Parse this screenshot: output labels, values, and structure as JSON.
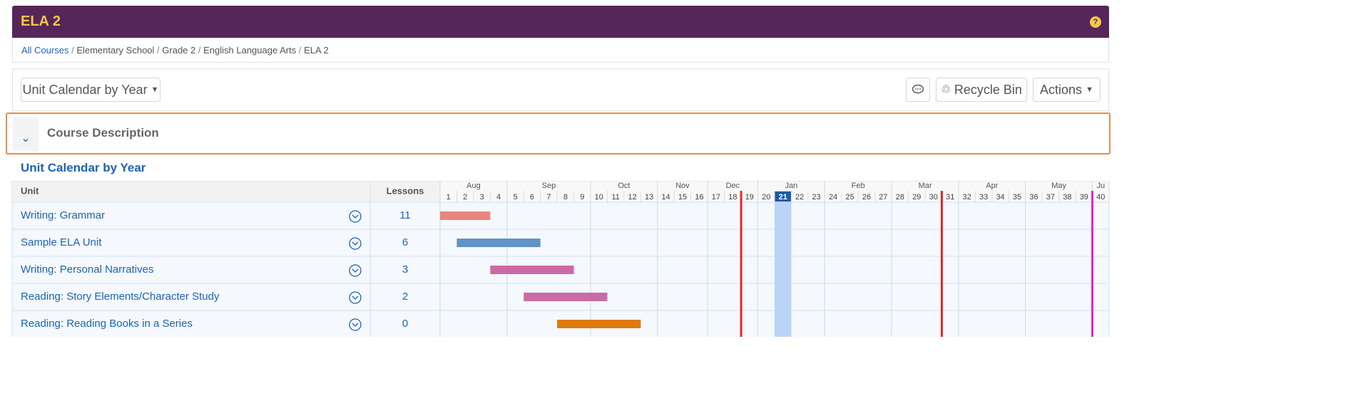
{
  "header": {
    "title": "ELA 2"
  },
  "breadcrumbs": [
    "All Courses",
    "Elementary School",
    "Grade 2",
    "English Language Arts",
    "ELA 2"
  ],
  "toolbar": {
    "view_menu": "Unit Calendar by Year",
    "recycle_bin": "Recycle Bin",
    "actions": "Actions"
  },
  "course_description": {
    "title": "Course Description"
  },
  "calendar": {
    "title": "Unit Calendar by Year",
    "unit_header": "Unit",
    "lessons_header": "Lessons",
    "months": [
      {
        "label": "Aug",
        "weeks": 4
      },
      {
        "label": "Sep",
        "weeks": 5
      },
      {
        "label": "Oct",
        "weeks": 4
      },
      {
        "label": "Nov",
        "weeks": 3
      },
      {
        "label": "Dec",
        "weeks": 3
      },
      {
        "label": "Jan",
        "weeks": 4
      },
      {
        "label": "Feb",
        "weeks": 4
      },
      {
        "label": "Mar",
        "weeks": 4
      },
      {
        "label": "Apr",
        "weeks": 4
      },
      {
        "label": "May",
        "weeks": 4
      },
      {
        "label": "Ju",
        "weeks": 1
      }
    ],
    "weeks": [
      1,
      2,
      3,
      4,
      5,
      6,
      7,
      8,
      9,
      10,
      11,
      12,
      13,
      14,
      15,
      16,
      17,
      18,
      19,
      20,
      21,
      22,
      23,
      24,
      25,
      26,
      27,
      28,
      29,
      30,
      31,
      32,
      33,
      34,
      35,
      36,
      37,
      38,
      39,
      40
    ],
    "current_week": 21,
    "markers": [
      {
        "after_week": 18,
        "color": "#e8262b"
      },
      {
        "after_week": 30,
        "color": "#e8262b"
      },
      {
        "after_week": 39,
        "color": "#e020e0"
      }
    ],
    "units": [
      {
        "name": "Writing: Grammar",
        "lessons": 11,
        "start_week": 1,
        "end_week": 3,
        "color": "#e8877f"
      },
      {
        "name": "Sample ELA Unit",
        "lessons": 6,
        "start_week": 2,
        "end_week": 6,
        "color": "#5f94c8"
      },
      {
        "name": "Writing: Personal Narratives",
        "lessons": 3,
        "start_week": 4,
        "end_week": 8,
        "color": "#cc6aa8"
      },
      {
        "name": "Reading: Story Elements/Character Study",
        "lessons": 2,
        "start_week": 6,
        "end_week": 10,
        "color": "#cc6aa8"
      },
      {
        "name": "Reading: Reading Books in a Series",
        "lessons": 0,
        "start_week": 8,
        "end_week": 12,
        "color": "#e07a10"
      }
    ]
  }
}
